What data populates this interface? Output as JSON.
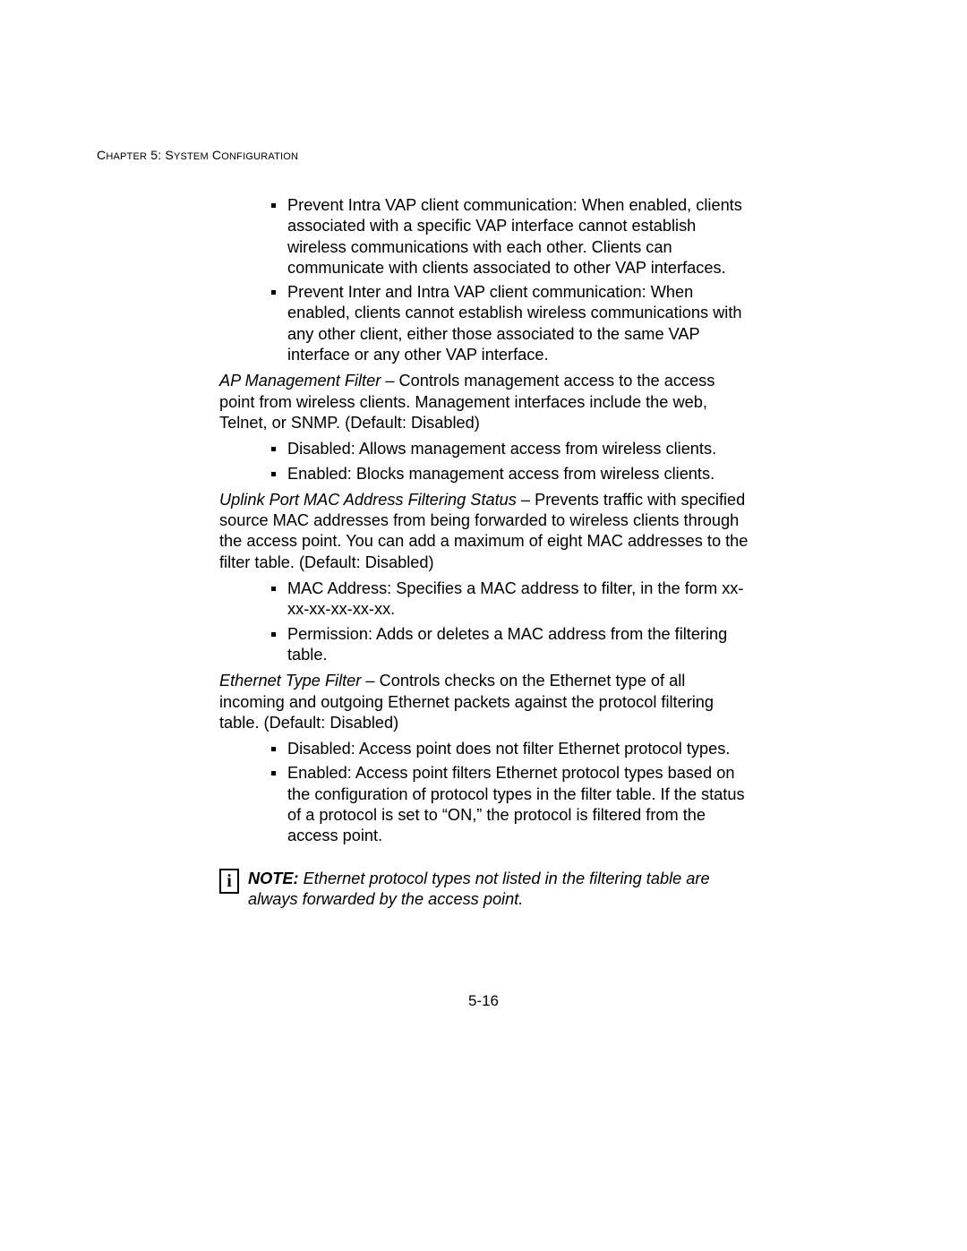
{
  "header": {
    "prefix": "C",
    "hapter": "HAPTER",
    "num": " 5: S",
    "ystem": "YSTEM",
    "space": " C",
    "onfig": "ONFIGURATION"
  },
  "section1_bullets": [
    "Prevent Intra VAP client communication: When enabled, clients associated with a specific VAP interface cannot establish wireless communications with each other. Clients can communicate with clients associated to other VAP interfaces.",
    "Prevent Inter and Intra VAP client communication: When enabled, clients cannot establish wireless communications with any other client, either those associated to the same VAP interface or any other VAP interface."
  ],
  "ap_mgmt": {
    "term": "AP Management Filter",
    "text": " – Controls management access to the access point from wireless clients. Management interfaces include the web, Telnet, or SNMP. (Default: Disabled)"
  },
  "ap_mgmt_bullets": [
    "Disabled: Allows management access from wireless clients.",
    "Enabled: Blocks management access from wireless clients."
  ],
  "uplink": {
    "term": "Uplink Port MAC Address Filtering Status",
    "text": " – Prevents traffic with specified source MAC addresses from being forwarded to wireless clients through the access point. You can add a maximum of eight MAC addresses to the filter table. (Default: Disabled)"
  },
  "uplink_bullets": [
    "MAC Address: Specifies a MAC address to filter, in the form xx-xx-xx-xx-xx-xx.",
    "Permission: Adds or deletes a MAC address from the filtering table."
  ],
  "eth": {
    "term": "Ethernet Type Filter",
    "text": " – Controls checks on the Ethernet type of all incoming and outgoing Ethernet packets against the protocol filtering table. (Default: Disabled)"
  },
  "eth_bullets": [
    "Disabled: Access point does not filter Ethernet protocol types.",
    "Enabled: Access point filters Ethernet protocol types based on the configuration of protocol types in the filter table. If the status of a protocol is set to “ON,” the protocol is filtered from the access point."
  ],
  "note": {
    "icon": "i",
    "label": "NOTE:",
    "text": " Ethernet protocol types not listed in the filtering table are always forwarded by the access point."
  },
  "page_number": "5-16"
}
